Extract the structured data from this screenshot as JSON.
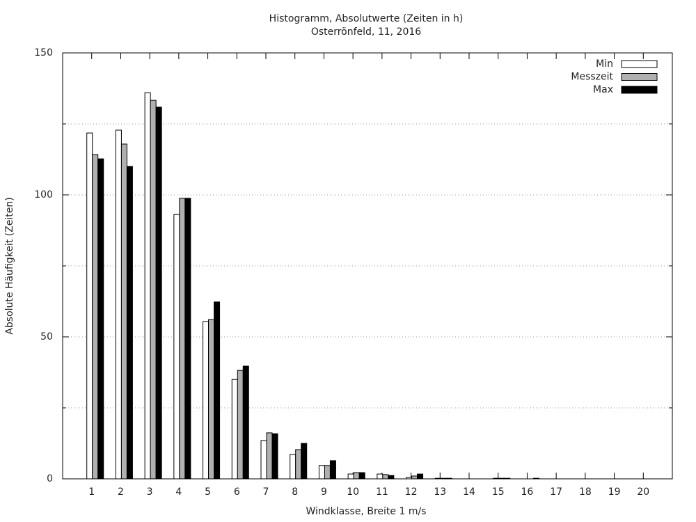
{
  "chart_data": {
    "type": "bar",
    "title": "Histogramm, Absolutwerte (Zeiten in h)",
    "subtitle": "Osterrönfeld, 11, 2016",
    "x_label": "Windklasse, Breite 1 m/s",
    "y_label": "Absolute Häufigkeit (Zeiten)",
    "categories": [
      "1",
      "2",
      "3",
      "4",
      "5",
      "6",
      "7",
      "8",
      "9",
      "10",
      "11",
      "12",
      "13",
      "14",
      "15",
      "16",
      "17",
      "18",
      "19",
      "20"
    ],
    "series": [
      {
        "name": "Min",
        "color": "#ffffff",
        "values": [
          121.8,
          122.8,
          136.0,
          93.1,
          55.4,
          35.0,
          13.5,
          8.6,
          4.7,
          1.7,
          1.7,
          0.5,
          0.2,
          0,
          0.2,
          0,
          0,
          0,
          0,
          0
        ]
      },
      {
        "name": "Messzeit",
        "color": "#b0b0b0",
        "values": [
          114.2,
          117.9,
          133.3,
          98.8,
          56.1,
          38.2,
          16.2,
          10.3,
          4.7,
          2.2,
          1.5,
          1.0,
          0.2,
          0,
          0.2,
          0,
          0,
          0,
          0,
          0
        ]
      },
      {
        "name": "Max",
        "color": "#000000",
        "values": [
          112.7,
          110.0,
          130.9,
          98.8,
          62.3,
          39.7,
          15.9,
          12.5,
          6.4,
          2.2,
          1.2,
          1.7,
          0.2,
          0,
          0.2,
          0.2,
          0,
          0,
          0,
          0
        ]
      }
    ],
    "ylim": [
      0,
      150
    ],
    "yticks": [
      0,
      50,
      100,
      150
    ],
    "yminorticks": [
      25,
      75,
      125
    ],
    "grid": true,
    "legend": "top-right"
  }
}
